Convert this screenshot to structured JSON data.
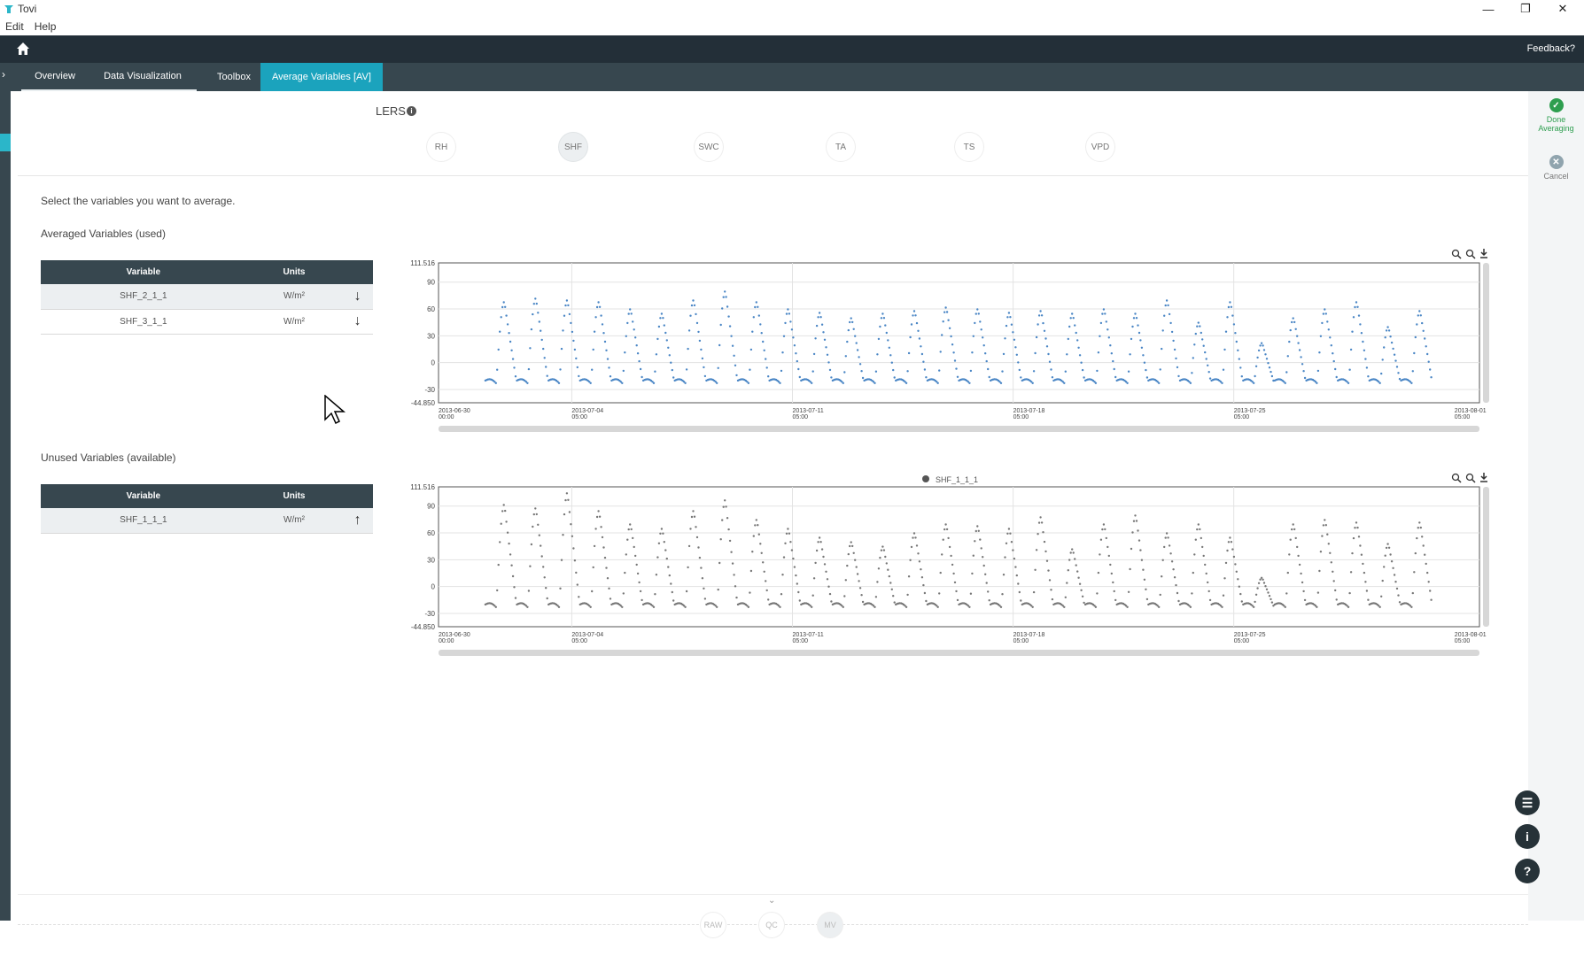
{
  "window": {
    "title": "Tovi",
    "controls": [
      "minimize",
      "restore",
      "close"
    ]
  },
  "menu": {
    "items": [
      "Edit",
      "Help"
    ]
  },
  "topnav": {
    "feedback_label": "Feedback?"
  },
  "tabs": [
    {
      "label": "Overview",
      "active": false
    },
    {
      "label": "Data Visualization",
      "active": false
    },
    {
      "label": "Toolbox",
      "active": false
    },
    {
      "label": "Average Variables [AV]",
      "active": true
    }
  ],
  "site": {
    "name": "LERS"
  },
  "variable_groups": [
    "RH",
    "SHF",
    "SWC",
    "TA",
    "TS",
    "VPD"
  ],
  "selected_group": "SHF",
  "side_actions": {
    "done_label": "Done Averaging",
    "cancel_label": "Cancel"
  },
  "instructions": "Select the variables you want to average.",
  "averaged": {
    "title": "Averaged Variables (used)",
    "headers": [
      "Variable",
      "Units"
    ],
    "rows": [
      {
        "variable": "SHF_2_1_1",
        "units": "W/m²"
      },
      {
        "variable": "SHF_3_1_1",
        "units": "W/m²"
      }
    ]
  },
  "unused": {
    "title": "Unused Variables (available)",
    "headers": [
      "Variable",
      "Units"
    ],
    "rows": [
      {
        "variable": "SHF_1_1_1",
        "units": "W/m²"
      }
    ]
  },
  "chart_data": [
    {
      "type": "scatter",
      "title": "",
      "legend": null,
      "color": "#4a86c5",
      "y_ticks": [
        "111.516",
        "90",
        "60",
        "30",
        "0",
        "-30",
        "-44.850"
      ],
      "ylim": [
        -44.85,
        111.516
      ],
      "x_ticks": [
        "2013-06-30 00:00",
        "2013-07-04 05:00",
        "2013-07-11 05:00",
        "2013-07-18 05:00",
        "2013-07-25 05:00",
        "2013-08-01 05:00"
      ],
      "daily_peaks": [
        68,
        72,
        70,
        68,
        60,
        55,
        70,
        80,
        68,
        60,
        56,
        50,
        55,
        58,
        62,
        60,
        56,
        58,
        55,
        60,
        55,
        70,
        45,
        68,
        22,
        50,
        60,
        68,
        40,
        58
      ]
    },
    {
      "type": "scatter",
      "title": "",
      "legend": "SHF_1_1_1",
      "color": "#777777",
      "y_ticks": [
        "111.516",
        "90",
        "60",
        "30",
        "0",
        "-30",
        "-44.850"
      ],
      "ylim": [
        -44.85,
        111.516
      ],
      "x_ticks": [
        "2013-06-30 00:00",
        "2013-07-04 05:00",
        "2013-07-11 05:00",
        "2013-07-18 05:00",
        "2013-07-25 05:00",
        "2013-08-01 05:00"
      ],
      "daily_peaks": [
        92,
        88,
        105,
        85,
        70,
        65,
        85,
        97,
        75,
        65,
        55,
        50,
        45,
        60,
        70,
        68,
        65,
        78,
        42,
        70,
        80,
        60,
        70,
        55,
        10,
        70,
        75,
        72,
        48,
        72
      ]
    }
  ],
  "bottom_steps": [
    "RAW",
    "QC",
    "MV"
  ],
  "active_step": "MV"
}
